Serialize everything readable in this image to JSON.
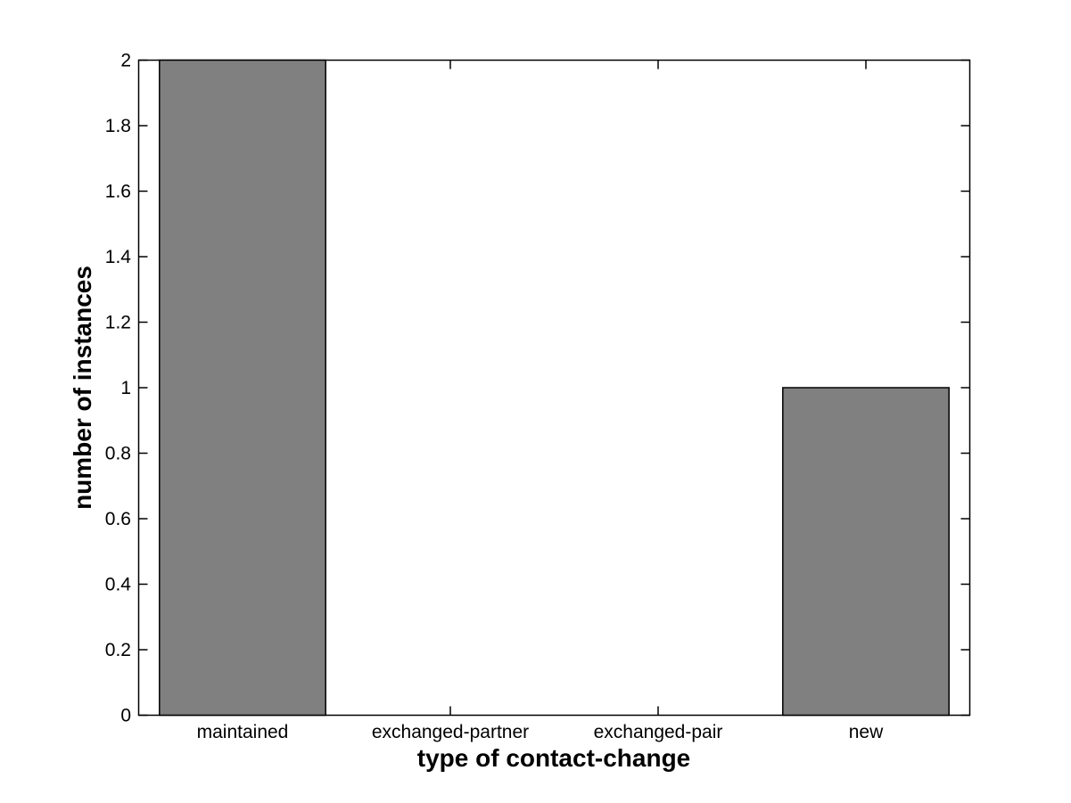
{
  "figure": {
    "background": "#ffffff"
  },
  "chart_data": {
    "type": "bar",
    "title": "",
    "categories": [
      "maintained",
      "exchanged-partner",
      "exchanged-pair",
      "new"
    ],
    "values": [
      2,
      0,
      0,
      1
    ],
    "xlabel": "type of contact-change",
    "ylabel": "number of instances",
    "ylim": [
      0,
      2
    ],
    "yticks": [
      0,
      0.2,
      0.4,
      0.6,
      0.8,
      1,
      1.2,
      1.4,
      1.6,
      1.8,
      2
    ],
    "ytick_labels": [
      "0",
      "0.2",
      "0.4",
      "0.6",
      "0.8",
      "1",
      "1.2",
      "1.4",
      "1.6",
      "1.8",
      "2"
    ],
    "bar_width_fraction": 0.8,
    "bar_fill": "#808080",
    "bar_edge": "#000000",
    "axis_color": "#000000",
    "text_color": "#000000",
    "grid": false,
    "legend": "none",
    "tick_direction": "in"
  }
}
